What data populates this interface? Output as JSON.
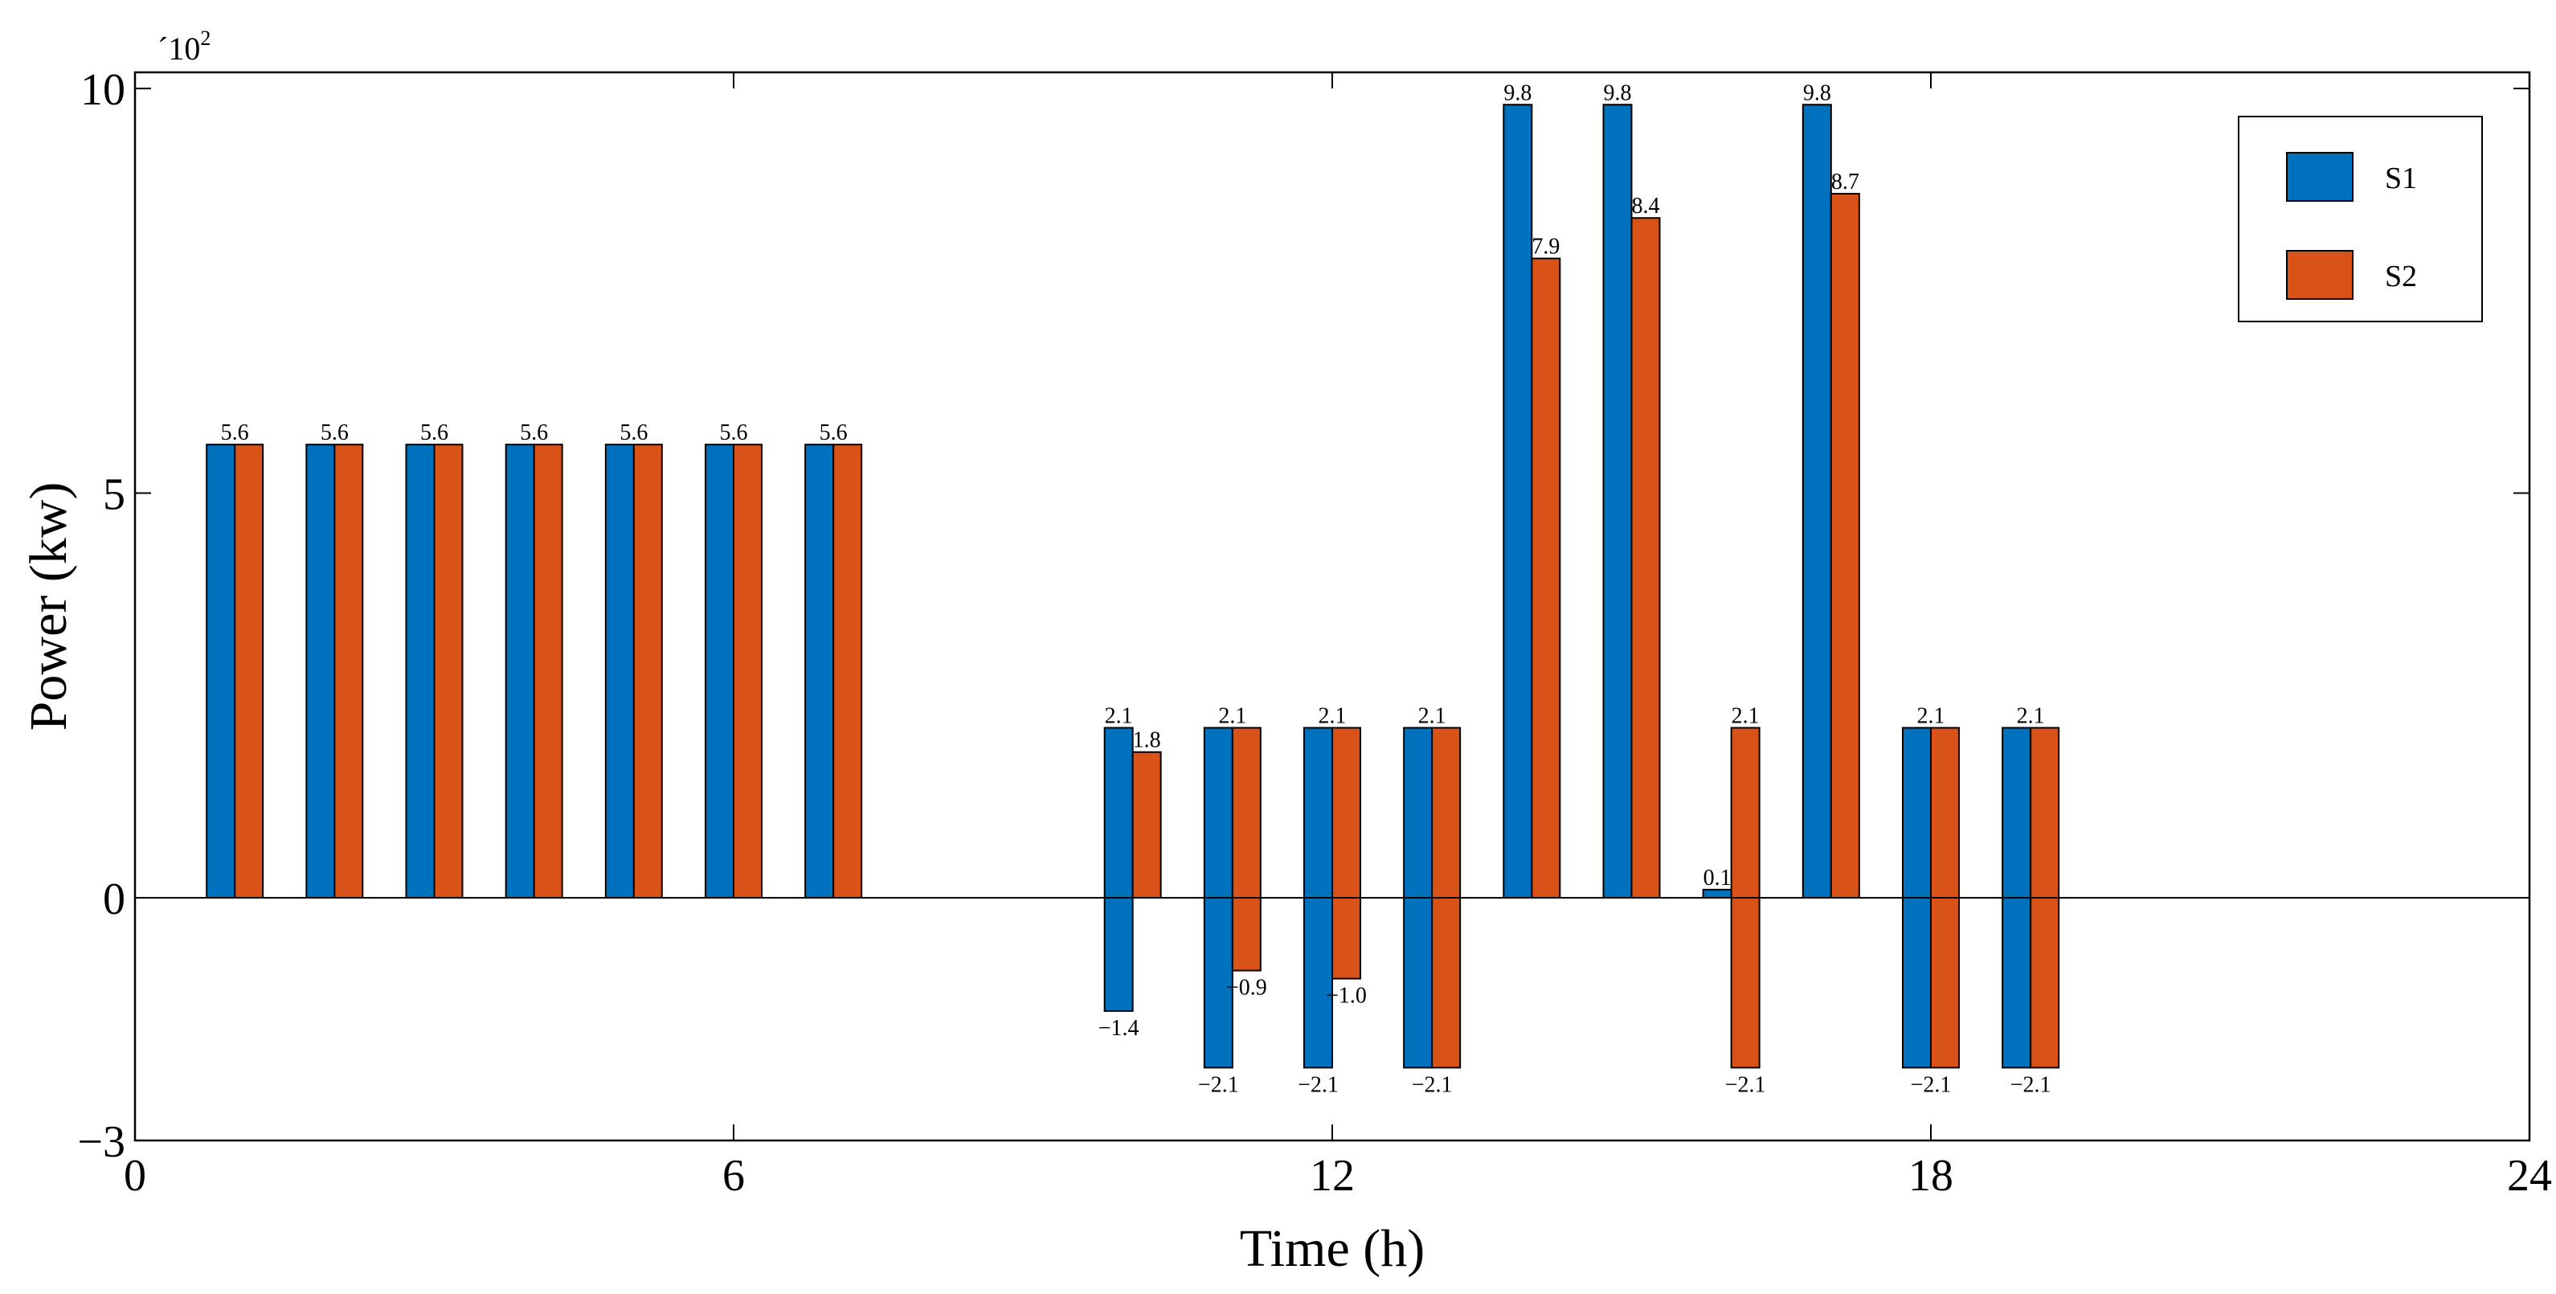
{
  "chart_data": {
    "type": "bar",
    "title": "",
    "xlabel": "Time (h)",
    "ylabel": "Power (kw)",
    "y_multiplier": "´10",
    "y_multiplier_exponent": "2",
    "xlim": [
      0,
      24
    ],
    "ylim": [
      -3,
      10.2
    ],
    "xticks": [
      0,
      6,
      12,
      18,
      24
    ],
    "yticks": [
      -3,
      0,
      5,
      10
    ],
    "x": [
      1,
      2,
      3,
      4,
      5,
      6,
      7,
      8,
      9,
      10,
      11,
      12,
      13,
      14,
      15,
      16,
      17,
      18,
      19,
      20,
      21,
      22,
      23,
      24
    ],
    "series": [
      {
        "name": "S1",
        "color": "#0072BD",
        "values": [
          5.6,
          5.6,
          5.6,
          5.6,
          5.6,
          5.6,
          5.6,
          0,
          0,
          2.1,
          2.1,
          2.1,
          2.1,
          9.8,
          9.8,
          0.1,
          9.8,
          2.1,
          2.1,
          0,
          0,
          0,
          0,
          0
        ],
        "low_values": [
          0,
          0,
          0,
          0,
          0,
          0,
          0,
          0,
          0,
          -1.4,
          -2.1,
          -2.1,
          -2.1,
          0,
          0,
          0,
          0,
          -2.1,
          -2.1,
          0,
          0,
          0,
          0,
          0
        ]
      },
      {
        "name": "S2",
        "color": "#D95319",
        "values": [
          5.6,
          5.6,
          5.6,
          5.6,
          5.6,
          5.6,
          5.6,
          0,
          0,
          1.8,
          2.1,
          2.1,
          2.1,
          7.9,
          8.4,
          2.1,
          8.7,
          2.1,
          2.1,
          0,
          0,
          0,
          0,
          0
        ],
        "low_values": [
          0,
          0,
          0,
          0,
          0,
          0,
          0,
          0,
          0,
          0,
          -0.9,
          -1.0,
          -2.1,
          0,
          0,
          -2.1,
          0,
          -2.1,
          -2.1,
          0,
          0,
          0,
          0,
          0
        ]
      }
    ],
    "top_labels": [
      {
        "x": 1,
        "text": "5.6"
      },
      {
        "x": 2,
        "text": "5.6"
      },
      {
        "x": 3,
        "text": "5.6"
      },
      {
        "x": 4,
        "text": "5.6"
      },
      {
        "x": 5,
        "text": "5.6"
      },
      {
        "x": 6,
        "text": "5.6"
      },
      {
        "x": 7,
        "text": "5.6"
      },
      {
        "x": 10,
        "text": "2.1",
        "series": 0
      },
      {
        "x": 10,
        "text": "1.8",
        "series": 1
      },
      {
        "x": 11,
        "text": "2.1"
      },
      {
        "x": 12,
        "text": "2.1"
      },
      {
        "x": 13,
        "text": "2.1"
      },
      {
        "x": 14,
        "text": "9.8",
        "series": 0
      },
      {
        "x": 14,
        "text": "7.9",
        "series": 1
      },
      {
        "x": 15,
        "text": "9.8",
        "series": 0
      },
      {
        "x": 15,
        "text": "8.4",
        "series": 1
      },
      {
        "x": 16,
        "text": "0.1",
        "series": 0
      },
      {
        "x": 16,
        "text": "2.1",
        "series": 1
      },
      {
        "x": 17,
        "text": "9.8",
        "series": 0
      },
      {
        "x": 17,
        "text": "8.7",
        "series": 1
      },
      {
        "x": 18,
        "text": "2.1"
      },
      {
        "x": 19,
        "text": "2.1"
      }
    ],
    "bottom_labels": [
      {
        "x": 10,
        "text": "−1.4",
        "series": 0
      },
      {
        "x": 11,
        "text": "−2.1",
        "series": 0
      },
      {
        "x": 11,
        "text": "−0.9",
        "series": 1
      },
      {
        "x": 12,
        "text": "−2.1",
        "series": 0
      },
      {
        "x": 12,
        "text": "−1.0",
        "series": 1
      },
      {
        "x": 13,
        "text": "−2.1"
      },
      {
        "x": 16,
        "text": "−2.1",
        "series": 1
      },
      {
        "x": 18,
        "text": "−2.1"
      },
      {
        "x": 19,
        "text": "−2.1"
      }
    ],
    "legend": {
      "position": "top-right",
      "entries": [
        "S1",
        "S2"
      ]
    },
    "grid": false
  }
}
